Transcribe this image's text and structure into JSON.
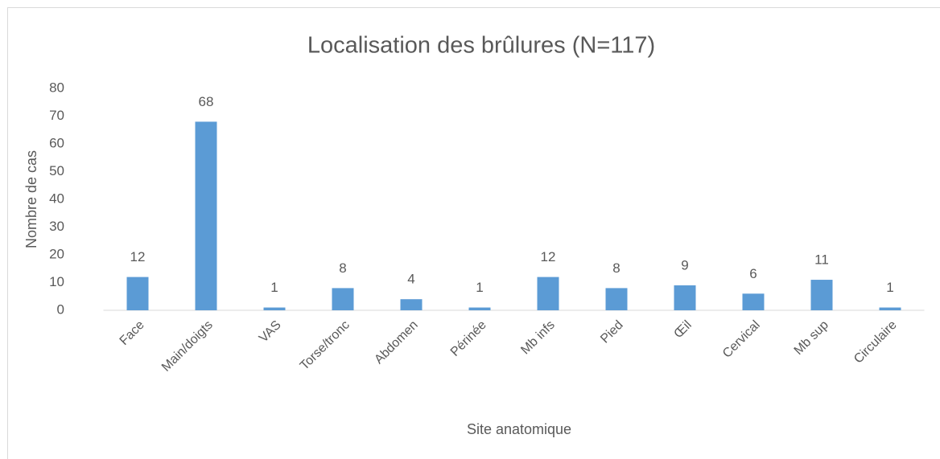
{
  "chart_data": {
    "type": "bar",
    "title": "Localisation des brûlures (N=117)",
    "xlabel": "Site anatomique",
    "ylabel": "Nombre de cas",
    "categories": [
      "Face",
      "Main/doigts",
      "VAS",
      "Torse/tronc",
      "Abdomen",
      "Périnée",
      "Mb infs",
      "Pied",
      "Œil",
      "Cervical",
      "Mb sup",
      "Circulaire"
    ],
    "values": [
      12,
      68,
      1,
      8,
      4,
      1,
      12,
      8,
      9,
      6,
      11,
      1
    ],
    "color": "#5b9bd5",
    "ylim": [
      0,
      80
    ],
    "yticks": [
      0,
      10,
      20,
      30,
      40,
      50,
      60,
      70,
      80
    ],
    "grid": false
  }
}
